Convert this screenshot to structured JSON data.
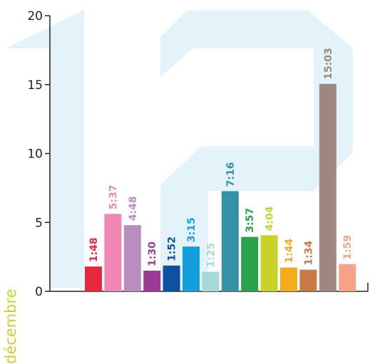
{
  "chart_data": {
    "type": "bar",
    "x": [
      "1",
      "2",
      "3",
      "4",
      "5",
      "6",
      "7",
      "8",
      "9",
      "10",
      "11",
      "12",
      "13",
      "14"
    ],
    "values": [
      1.8,
      5.62,
      4.8,
      1.5,
      1.87,
      3.25,
      1.42,
      7.27,
      3.95,
      4.07,
      1.73,
      1.57,
      15.05,
      1.98
    ],
    "data_labels": [
      "1:48",
      "5:37",
      "4:48",
      "1:30",
      "1:52",
      "3:15",
      "1:25",
      "7:16",
      "3:57",
      "4:04",
      "1:44",
      "1:34",
      "15:03",
      "1:59"
    ],
    "colors": [
      "#e8283c",
      "#f086b4",
      "#b98cc0",
      "#9c3b93",
      "#0b51a0",
      "#169fdf",
      "#a6d8d6",
      "#3591a6",
      "#2aa14b",
      "#c7d22a",
      "#f6ab1c",
      "#c87a46",
      "#9e8880",
      "#f6a489"
    ],
    "y_ticks": [
      "0",
      "5",
      "10",
      "15",
      "20"
    ],
    "ylim": [
      0,
      20
    ],
    "grid": false,
    "side_label": "décembre",
    "side_label_color": "#c7d22a",
    "background_motif": "12",
    "background_motif_color": "#e4f3fa"
  }
}
